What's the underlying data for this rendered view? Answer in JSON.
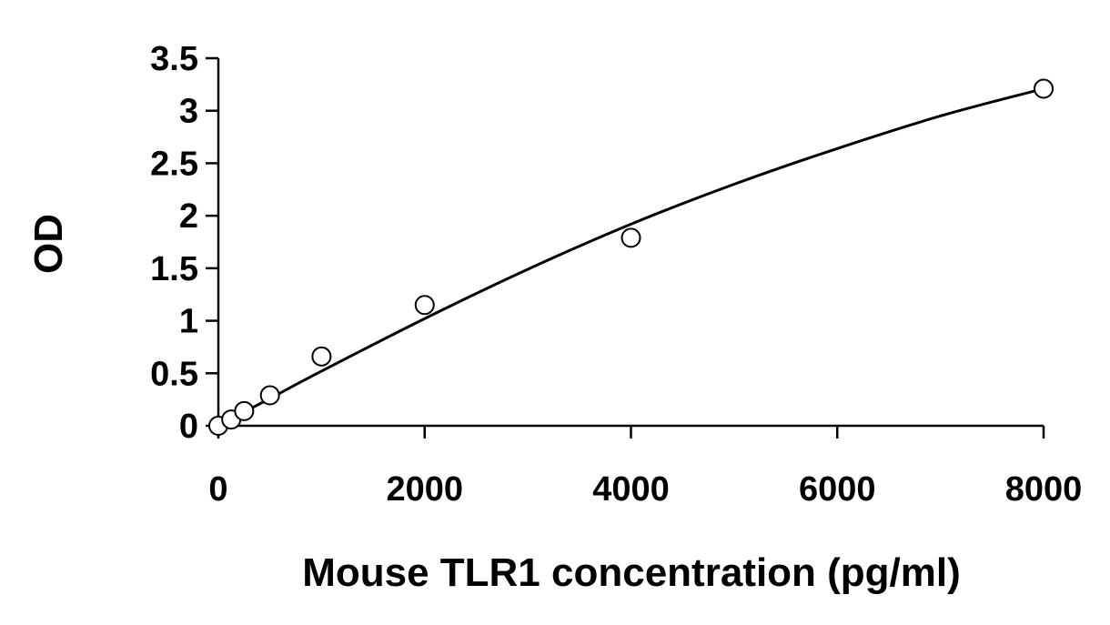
{
  "chart_data": {
    "type": "scatter",
    "title": "",
    "xlabel": "Mouse TLR1 concentration (pg/ml)",
    "ylabel": "OD",
    "xlim": [
      0,
      8000
    ],
    "ylim": [
      0,
      3.5
    ],
    "x_ticks": [
      0,
      2000,
      4000,
      6000,
      8000
    ],
    "x_tick_labels": [
      "0",
      "2000",
      "4000",
      "6000",
      "8000"
    ],
    "y_ticks": [
      0,
      0.5,
      1,
      1.5,
      2,
      2.5,
      3,
      3.5
    ],
    "y_tick_labels": [
      "0",
      "0.5",
      "1",
      "1.5",
      "2",
      "2.5",
      "3",
      "3.5"
    ],
    "grid": false,
    "legend": "none",
    "series": [
      {
        "marker": "open-circle",
        "x": [
          0,
          125,
          250,
          500,
          1000,
          2000,
          4000,
          8000
        ],
        "y": [
          0.0,
          0.06,
          0.14,
          0.29,
          0.66,
          1.15,
          1.79,
          3.21
        ]
      }
    ],
    "fit_curve": {
      "x": [
        0,
        500,
        1000,
        2000,
        3000,
        4000,
        5000,
        6000,
        7000,
        8000
      ],
      "y": [
        0.0,
        0.26,
        0.52,
        1.02,
        1.49,
        1.92,
        2.3,
        2.64,
        2.95,
        3.21
      ]
    },
    "colors": {
      "axis": "#000000",
      "marker_stroke": "#000000",
      "marker_fill": "#ffffff",
      "curve": "#000000"
    }
  }
}
